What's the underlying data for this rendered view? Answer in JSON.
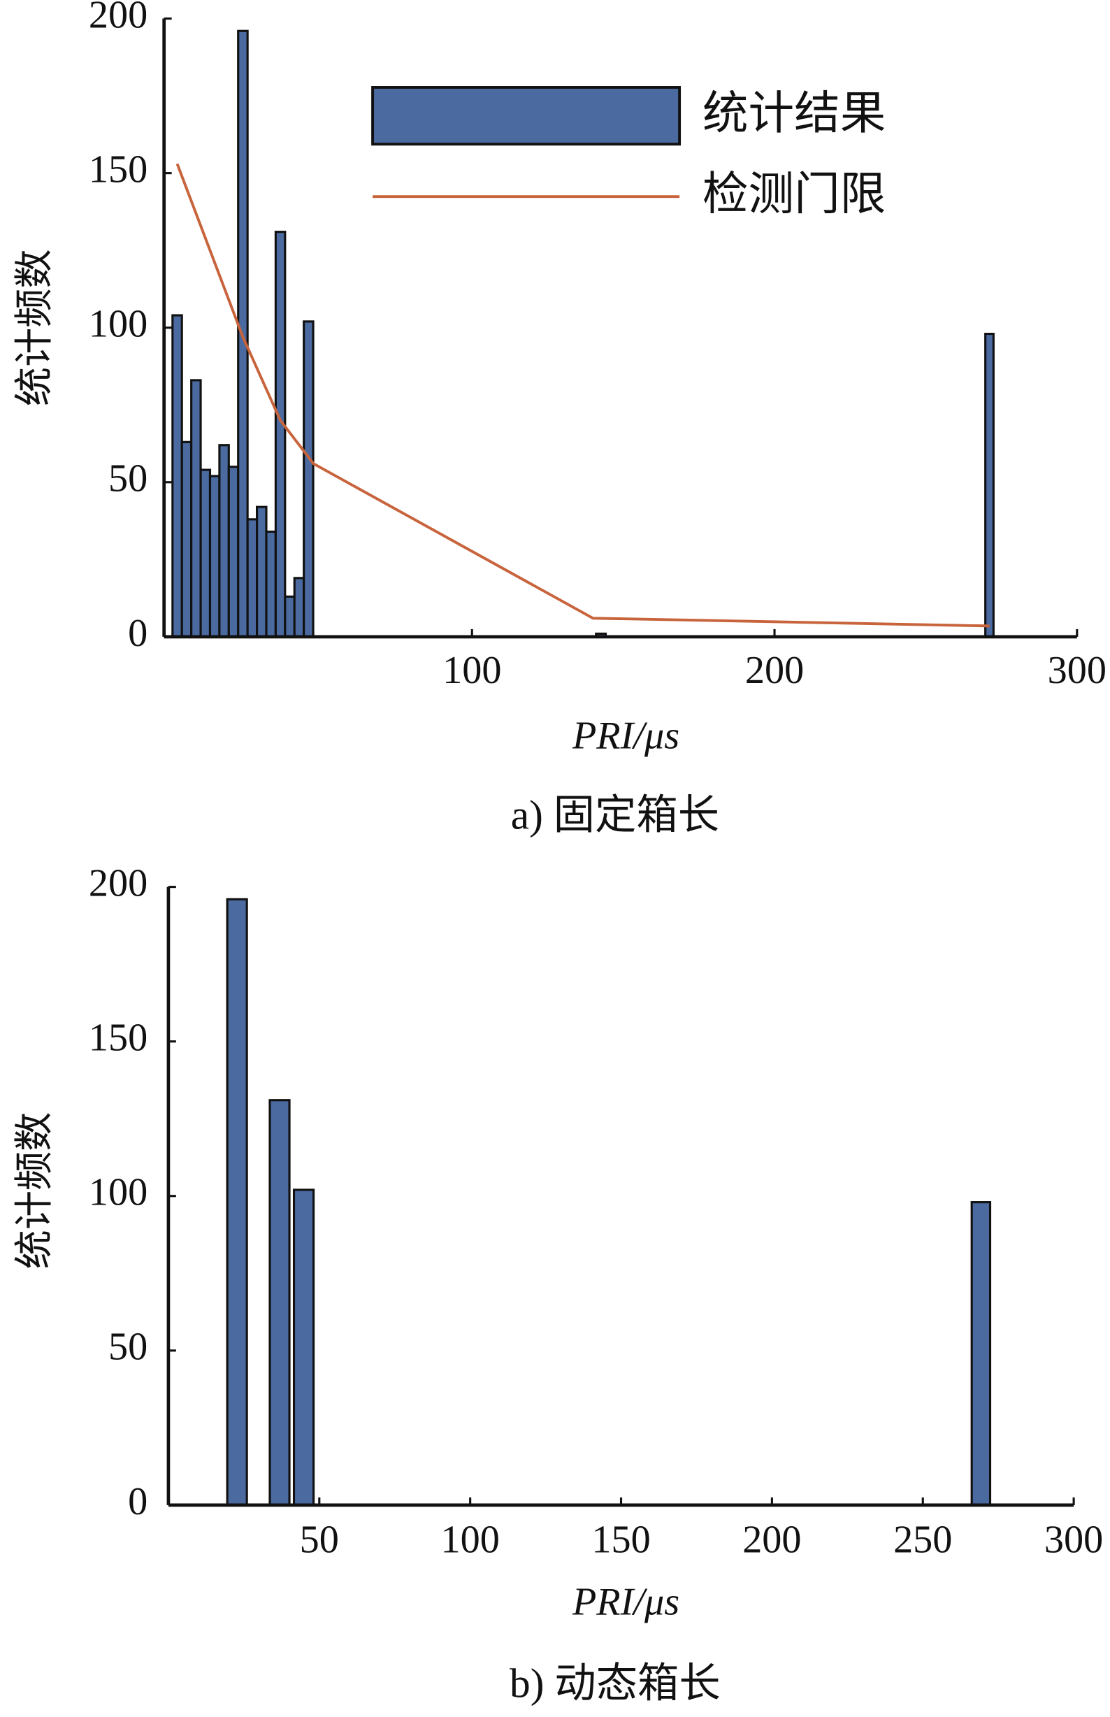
{
  "chart_data": [
    {
      "type": "bar",
      "caption": "a) 固定箱长",
      "y_label": "统计频数",
      "x_label": "PRI/μs",
      "xlim": [
        0,
        300
      ],
      "xticks": [
        100,
        200,
        300
      ],
      "ylim": [
        0,
        200
      ],
      "yticks": [
        0,
        50,
        100,
        150,
        200
      ],
      "series": [
        {
          "name": "统计结果",
          "type": "bar",
          "color": "#4a6aa0",
          "x_ranges": [
            [
              1,
              4.1
            ],
            [
              4.1,
              7.2
            ],
            [
              7.2,
              10.3
            ],
            [
              10.3,
              13.4
            ],
            [
              13.4,
              16.5
            ],
            [
              16.5,
              19.6
            ],
            [
              19.6,
              22.7
            ],
            [
              22.7,
              25.8
            ],
            [
              25.8,
              28.9
            ],
            [
              28.9,
              32
            ],
            [
              32,
              35.1
            ],
            [
              35.1,
              38.2
            ],
            [
              38.2,
              41.3
            ],
            [
              41.3,
              44.4
            ],
            [
              44.4,
              47.5
            ],
            [
              141,
              144.2
            ],
            [
              269.7,
              272.4
            ]
          ],
          "values": [
            104,
            63,
            83,
            54,
            52,
            62,
            55,
            196,
            38,
            42,
            34,
            131,
            13,
            19,
            102,
            1,
            98
          ]
        },
        {
          "name": "检测门限",
          "type": "line",
          "color": "#c8643c",
          "x": [
            2.55,
            24.25,
            36.65,
            47.6,
            140,
            271.1
          ],
          "values": [
            153,
            97,
            70,
            56,
            6,
            3.5
          ]
        }
      ]
    },
    {
      "type": "bar",
      "caption": "b) 动态箱长",
      "y_label": "统计频数",
      "x_label": "PRI/μs",
      "xlim": [
        0,
        300
      ],
      "xticks": [
        50,
        100,
        150,
        200,
        250,
        300
      ],
      "ylim": [
        0,
        200
      ],
      "yticks": [
        0,
        50,
        100,
        150,
        200
      ],
      "series": [
        {
          "type": "bar",
          "color": "#4a6aa0",
          "x_ranges": [
            [
              19.5,
              26
            ],
            [
              33.6,
              40.1
            ],
            [
              41.6,
              48.1
            ],
            [
              266.2,
              272.3
            ]
          ],
          "values": [
            196,
            131,
            102,
            98
          ]
        }
      ]
    }
  ]
}
